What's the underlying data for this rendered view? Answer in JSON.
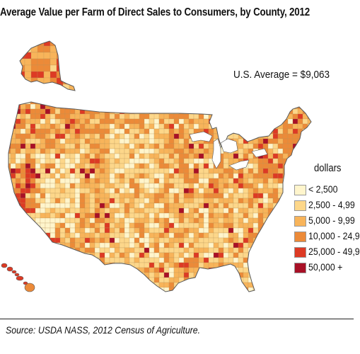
{
  "title": "Average Value per Farm of Direct Sales to Consumers, by County, 2012",
  "us_average": "U.S. Average = $9,063",
  "legend": {
    "title": "dollars",
    "items": [
      {
        "label": "< 2,500",
        "color": "#FFF5CC"
      },
      {
        "label": "2,500 - 4,99",
        "color": "#FDD78A"
      },
      {
        "label": "5,000 - 9,99",
        "color": "#F8B45A"
      },
      {
        "label": "10,000 - 24,9",
        "color": "#EC8A38"
      },
      {
        "label": "25,000 - 49,9",
        "color": "#DD3A24"
      },
      {
        "label": "50,000 +",
        "color": "#A81026"
      }
    ]
  },
  "source": "Source: USDA NASS, 2012 Census of Agriculture.",
  "border_color": "#5A5A5A"
}
